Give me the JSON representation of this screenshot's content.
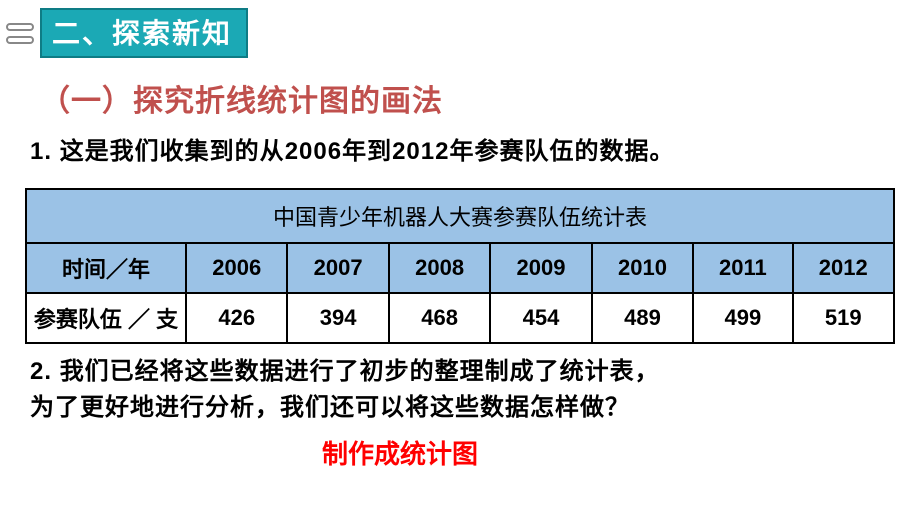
{
  "header": {
    "badge": "二、探索新知"
  },
  "subtitle": "（一）探究折线统计图的画法",
  "intro": {
    "prefix": "1. ",
    "text_a": "这是我们收集到的从",
    "year_a": "2006",
    "mid": "年到",
    "year_b": "2012",
    "text_b": "年参赛队伍的数据。"
  },
  "table": {
    "title": "中国青少年机器人大赛参赛队伍统计表",
    "row_labels": {
      "time": "时间／年",
      "teams": "参赛队伍 ／ 支"
    },
    "years": [
      "2006",
      "2007",
      "2008",
      "2009",
      "2010",
      "2011",
      "2012"
    ],
    "values": [
      "426",
      "394",
      "468",
      "454",
      "489",
      "499",
      "519"
    ],
    "header_bg": "#9bc2e6",
    "border_color": "#000000",
    "cell_bg": "#ffffff"
  },
  "question2": {
    "prefix": "2. ",
    "line1": "我们已经将这些数据进行了初步的整理制成了统计表，",
    "line2": "为了更好地进行分析，我们还可以将这些数据怎样做？"
  },
  "answer": "制作成统计图",
  "colors": {
    "badge_bg": "#1ba9b5",
    "badge_border": "#0e7c85",
    "subtitle": "#c0504d",
    "answer": "#ff0000"
  }
}
